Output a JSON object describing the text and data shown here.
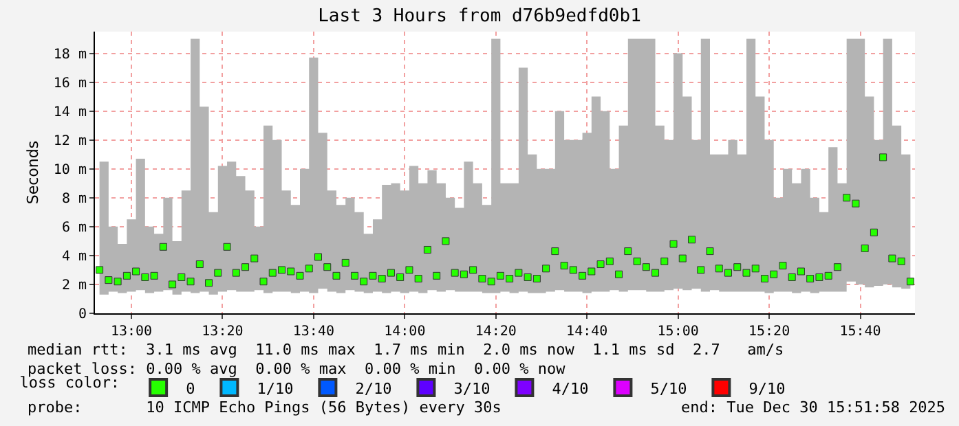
{
  "chart_data": {
    "type": "scatter",
    "title": "Last 3 Hours from d76b9edfd0b1",
    "ylabel": "Seconds",
    "x": [
      "2025-12-30T12:53",
      "2025-12-30T12:55",
      "2025-12-30T12:57",
      "2025-12-30T12:59",
      "2025-12-30T13:01",
      "2025-12-30T13:03",
      "2025-12-30T13:05",
      "2025-12-30T13:07",
      "2025-12-30T13:09",
      "2025-12-30T13:11",
      "2025-12-30T13:13",
      "2025-12-30T13:15",
      "2025-12-30T13:17",
      "2025-12-30T13:19",
      "2025-12-30T13:21",
      "2025-12-30T13:23",
      "2025-12-30T13:25",
      "2025-12-30T13:27",
      "2025-12-30T13:29",
      "2025-12-30T13:31",
      "2025-12-30T13:33",
      "2025-12-30T13:35",
      "2025-12-30T13:37",
      "2025-12-30T13:39",
      "2025-12-30T13:41",
      "2025-12-30T13:43",
      "2025-12-30T13:45",
      "2025-12-30T13:47",
      "2025-12-30T13:49",
      "2025-12-30T13:51",
      "2025-12-30T13:53",
      "2025-12-30T13:55",
      "2025-12-30T13:57",
      "2025-12-30T13:59",
      "2025-12-30T14:01",
      "2025-12-30T14:03",
      "2025-12-30T14:05",
      "2025-12-30T14:07",
      "2025-12-30T14:09",
      "2025-12-30T14:11",
      "2025-12-30T14:13",
      "2025-12-30T14:15",
      "2025-12-30T14:17",
      "2025-12-30T14:19",
      "2025-12-30T14:21",
      "2025-12-30T14:23",
      "2025-12-30T14:25",
      "2025-12-30T14:27",
      "2025-12-30T14:29",
      "2025-12-30T14:31",
      "2025-12-30T14:33",
      "2025-12-30T14:35",
      "2025-12-30T14:37",
      "2025-12-30T14:39",
      "2025-12-30T14:41",
      "2025-12-30T14:43",
      "2025-12-30T14:45",
      "2025-12-30T14:47",
      "2025-12-30T14:49",
      "2025-12-30T14:51",
      "2025-12-30T14:53",
      "2025-12-30T14:55",
      "2025-12-30T14:57",
      "2025-12-30T14:59",
      "2025-12-30T15:01",
      "2025-12-30T15:03",
      "2025-12-30T15:05",
      "2025-12-30T15:07",
      "2025-12-30T15:09",
      "2025-12-30T15:11",
      "2025-12-30T15:13",
      "2025-12-30T15:15",
      "2025-12-30T15:17",
      "2025-12-30T15:19",
      "2025-12-30T15:21",
      "2025-12-30T15:23",
      "2025-12-30T15:25",
      "2025-12-30T15:27",
      "2025-12-30T15:29",
      "2025-12-30T15:31",
      "2025-12-30T15:33",
      "2025-12-30T15:35",
      "2025-12-30T15:37",
      "2025-12-30T15:39",
      "2025-12-30T15:41",
      "2025-12-30T15:43",
      "2025-12-30T15:45",
      "2025-12-30T15:47",
      "2025-12-30T15:49",
      "2025-12-30T15:51"
    ],
    "series": [
      {
        "name": "0",
        "color": "#26ff00",
        "values": [
          3.0,
          2.3,
          2.2,
          2.6,
          2.9,
          2.5,
          2.6,
          4.6,
          2.0,
          2.5,
          2.2,
          3.4,
          2.1,
          2.8,
          4.6,
          2.8,
          3.2,
          3.8,
          2.2,
          2.8,
          3.0,
          2.9,
          2.6,
          3.1,
          3.9,
          3.2,
          2.6,
          3.5,
          2.6,
          2.2,
          2.6,
          2.4,
          2.8,
          2.5,
          3.0,
          2.4,
          4.4,
          2.6,
          5.0,
          2.8,
          2.7,
          3.0,
          2.4,
          2.2,
          2.6,
          2.4,
          2.8,
          2.5,
          2.4,
          3.1,
          4.3,
          3.3,
          3.0,
          2.6,
          2.9,
          3.4,
          3.6,
          2.7,
          4.3,
          3.6,
          3.2,
          2.8,
          3.6,
          4.8,
          3.8,
          5.1,
          3.0,
          4.3,
          3.1,
          2.8,
          3.2,
          2.8,
          3.1,
          2.4,
          2.7,
          3.3,
          2.5,
          2.9,
          2.4,
          2.5,
          2.6,
          3.2,
          8.0,
          7.6,
          4.5,
          5.6,
          10.8,
          3.8,
          3.6,
          2.2
        ],
        "lower": [
          1.3,
          1.5,
          1.4,
          1.5,
          1.6,
          1.4,
          1.5,
          1.6,
          1.3,
          1.5,
          1.4,
          1.5,
          1.3,
          1.5,
          1.6,
          1.5,
          1.5,
          1.6,
          1.4,
          1.5,
          1.5,
          1.4,
          1.5,
          1.4,
          1.7,
          1.5,
          1.4,
          1.6,
          1.5,
          1.4,
          1.5,
          1.4,
          1.5,
          1.4,
          1.5,
          1.4,
          1.6,
          1.5,
          1.6,
          1.5,
          1.5,
          1.5,
          1.4,
          1.4,
          1.5,
          1.4,
          1.5,
          1.4,
          1.4,
          1.5,
          1.6,
          1.5,
          1.5,
          1.4,
          1.5,
          1.5,
          1.6,
          1.5,
          1.6,
          1.6,
          1.5,
          1.5,
          1.6,
          1.7,
          1.6,
          1.7,
          1.5,
          1.6,
          1.5,
          1.5,
          1.5,
          1.5,
          1.5,
          1.4,
          1.5,
          1.5,
          1.4,
          1.5,
          1.4,
          1.5,
          1.5,
          1.5,
          2.2,
          2.0,
          1.8,
          1.9,
          2.0,
          1.8,
          1.7,
          1.5
        ],
        "upper": [
          10.5,
          6,
          4.8,
          6.5,
          10.7,
          6,
          5.5,
          8,
          5,
          8.5,
          19,
          14.3,
          7,
          10.2,
          10.5,
          9.5,
          8.5,
          6,
          13,
          12,
          8.5,
          7.5,
          10,
          17.7,
          12.5,
          8.5,
          7.5,
          8,
          7,
          5.5,
          6.5,
          8.9,
          9,
          8.5,
          10.2,
          9,
          9.9,
          9,
          8,
          7.3,
          10.5,
          9,
          7.5,
          19,
          9,
          9,
          17,
          11,
          10,
          10,
          14,
          12,
          12,
          12.5,
          15,
          14,
          10,
          13,
          19,
          19,
          19,
          13,
          12,
          18,
          15,
          12,
          19,
          11,
          11,
          12,
          11,
          19,
          15,
          12,
          8,
          10,
          9,
          10,
          8,
          7,
          11.5,
          9,
          19,
          19,
          15,
          12,
          19,
          13,
          11,
          10
        ]
      },
      {
        "name": "1/10",
        "color": "#00b8ff",
        "values": [
          null,
          null,
          null,
          null,
          null,
          null,
          null,
          null,
          null,
          null,
          null,
          null,
          null,
          null,
          null,
          null,
          null,
          null,
          null,
          null,
          null,
          null,
          null,
          null,
          null,
          null,
          null,
          null,
          null,
          null,
          null,
          null,
          null,
          null,
          null,
          null,
          null,
          null,
          null,
          null,
          null,
          null,
          null,
          null,
          null,
          null,
          null,
          null,
          null,
          null,
          null,
          null,
          null,
          null,
          null,
          null,
          null,
          null,
          null,
          null,
          null,
          null,
          null,
          null,
          null,
          null,
          null,
          null,
          null,
          null,
          null,
          null,
          null,
          null,
          null,
          null,
          null,
          null,
          null,
          null,
          null,
          null,
          null,
          null,
          null,
          null,
          null,
          null,
          null,
          null
        ]
      },
      {
        "name": "2/10",
        "color": "#0059ff",
        "values": [
          null,
          null,
          null,
          null,
          null,
          null,
          null,
          null,
          null,
          null,
          null,
          null,
          null,
          null,
          null,
          null,
          null,
          null,
          null,
          null,
          null,
          null,
          null,
          null,
          null,
          null,
          null,
          null,
          null,
          null,
          null,
          null,
          null,
          null,
          null,
          null,
          null,
          null,
          null,
          null,
          null,
          null,
          null,
          null,
          null,
          null,
          null,
          null,
          null,
          null,
          null,
          null,
          null,
          null,
          null,
          null,
          null,
          null,
          null,
          null,
          null,
          null,
          null,
          null,
          null,
          null,
          null,
          null,
          null,
          null,
          null,
          null,
          null,
          null,
          null,
          null,
          null,
          null,
          null,
          null,
          null,
          null,
          null,
          null,
          null,
          null,
          null,
          null,
          null,
          null
        ]
      },
      {
        "name": "3/10",
        "color": "#5e00ff",
        "values": [
          null,
          null,
          null,
          null,
          null,
          null,
          null,
          null,
          null,
          null,
          null,
          null,
          null,
          null,
          null,
          null,
          null,
          null,
          null,
          null,
          null,
          null,
          null,
          null,
          null,
          null,
          null,
          null,
          null,
          null,
          null,
          null,
          null,
          null,
          null,
          null,
          null,
          null,
          null,
          null,
          null,
          null,
          null,
          null,
          null,
          null,
          null,
          null,
          null,
          null,
          null,
          null,
          null,
          null,
          null,
          null,
          null,
          null,
          null,
          null,
          null,
          null,
          null,
          null,
          null,
          null,
          null,
          null,
          null,
          null,
          null,
          null,
          null,
          null,
          null,
          null,
          null,
          null,
          null,
          null,
          null,
          null,
          null,
          null,
          null,
          null,
          null,
          null,
          null,
          null
        ]
      },
      {
        "name": "4/10",
        "color": "#7e00ff",
        "values": [
          null,
          null,
          null,
          null,
          null,
          null,
          null,
          null,
          null,
          null,
          null,
          null,
          null,
          null,
          null,
          null,
          null,
          null,
          null,
          null,
          null,
          null,
          null,
          null,
          null,
          null,
          null,
          null,
          null,
          null,
          null,
          null,
          null,
          null,
          null,
          null,
          null,
          null,
          null,
          null,
          null,
          null,
          null,
          null,
          null,
          null,
          null,
          null,
          null,
          null,
          null,
          null,
          null,
          null,
          null,
          null,
          null,
          null,
          null,
          null,
          null,
          null,
          null,
          null,
          null,
          null,
          null,
          null,
          null,
          null,
          null,
          null,
          null,
          null,
          null,
          null,
          null,
          null,
          null,
          null,
          null,
          null,
          null,
          null,
          null,
          null,
          null,
          null,
          null,
          null
        ]
      },
      {
        "name": "5/10",
        "color": "#dd00ff",
        "values": [
          null,
          null,
          null,
          null,
          null,
          null,
          null,
          null,
          null,
          null,
          null,
          null,
          null,
          null,
          null,
          null,
          null,
          null,
          null,
          null,
          null,
          null,
          null,
          null,
          null,
          null,
          null,
          null,
          null,
          null,
          null,
          null,
          null,
          null,
          null,
          null,
          null,
          null,
          null,
          null,
          null,
          null,
          null,
          null,
          null,
          null,
          null,
          null,
          null,
          null,
          null,
          null,
          null,
          null,
          null,
          null,
          null,
          null,
          null,
          null,
          null,
          null,
          null,
          null,
          null,
          null,
          null,
          null,
          null,
          null,
          null,
          null,
          null,
          null,
          null,
          null,
          null,
          null,
          null,
          null,
          null,
          null,
          null,
          null,
          null,
          null,
          null,
          null,
          null,
          null
        ]
      },
      {
        "name": "9/10",
        "color": "#ff0000",
        "values": [
          null,
          null,
          null,
          null,
          null,
          null,
          null,
          null,
          null,
          null,
          null,
          null,
          null,
          null,
          null,
          null,
          null,
          null,
          null,
          null,
          null,
          null,
          null,
          null,
          null,
          null,
          null,
          null,
          null,
          null,
          null,
          null,
          null,
          null,
          null,
          null,
          null,
          null,
          null,
          null,
          null,
          null,
          null,
          null,
          null,
          null,
          null,
          null,
          null,
          null,
          null,
          null,
          null,
          null,
          null,
          null,
          null,
          null,
          null,
          null,
          null,
          null,
          null,
          null,
          null,
          null,
          null,
          null,
          null,
          null,
          null,
          null,
          null,
          null,
          null,
          null,
          null,
          null,
          null,
          null,
          null,
          null,
          null,
          null,
          null,
          null,
          null,
          null,
          null,
          null
        ]
      }
    ],
    "marker": "square",
    "legend": "bottom",
    "legend_title": "loss color:",
    "xlim": [
      "2025-12-30T12:52",
      "2025-12-30T15:52"
    ],
    "xticks": [
      {
        "value": "2025-12-30T13:00",
        "label": "13:00"
      },
      {
        "value": "2025-12-30T13:20",
        "label": "13:20"
      },
      {
        "value": "2025-12-30T13:40",
        "label": "13:40"
      },
      {
        "value": "2025-12-30T14:00",
        "label": "14:00"
      },
      {
        "value": "2025-12-30T14:20",
        "label": "14:20"
      },
      {
        "value": "2025-12-30T14:40",
        "label": "14:40"
      },
      {
        "value": "2025-12-30T15:00",
        "label": "15:00"
      },
      {
        "value": "2025-12-30T15:20",
        "label": "15:20"
      },
      {
        "value": "2025-12-30T15:40",
        "label": "15:40"
      }
    ],
    "ylim": [
      0,
      19.5
    ],
    "yticks": [
      0,
      {
        "value": 2,
        "label": "2 m"
      },
      {
        "value": 4,
        "label": "4 m"
      },
      {
        "value": 6,
        "label": "6 m"
      },
      {
        "value": 8,
        "label": "8 m"
      },
      {
        "value": 10,
        "label": "10 m"
      },
      {
        "value": 12,
        "label": "12 m"
      },
      {
        "value": 14,
        "label": "14 m"
      },
      {
        "value": 16,
        "label": "16 m"
      },
      {
        "value": 18,
        "label": "18 m"
      }
    ],
    "grid": true,
    "annotations": [
      "median rtt:  3.1 ms avg  11.0 ms max  1.7 ms min  2.0 ms now  1.1 ms sd  2.7   am/s",
      "packet loss: 0.00 % avg  0.00 % max  0.00 % min  0.00 % now",
      "probe:       10 ICMP Echo Pings (56 Bytes) every 30s",
      "end: Tue Dec 30 15:51:58 2025"
    ]
  }
}
